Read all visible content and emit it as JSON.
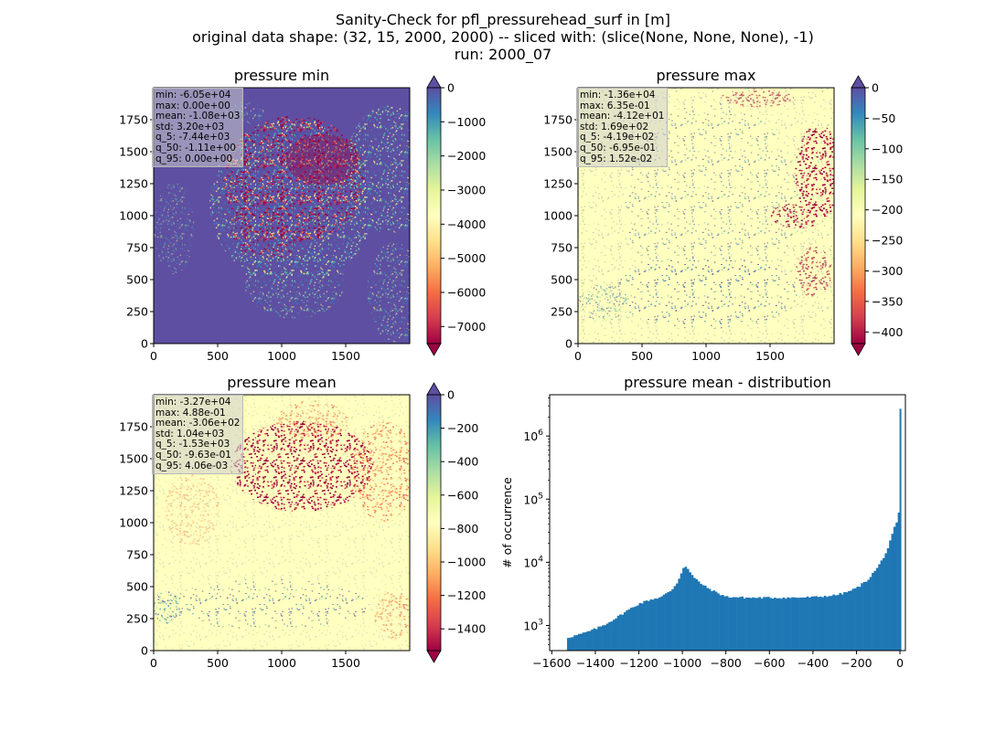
{
  "figure": {
    "suptitle_lines": [
      "Sanity-Check for pfl_pressurehead_surf in [m]",
      "original data shape: (32, 15, 2000, 2000) -- sliced with: (slice(None, None, None), -1)",
      "run: 2000_07"
    ]
  },
  "chart_data": [
    {
      "type": "heatmap",
      "title": "pressure min",
      "colormap": "Spectral",
      "xticks": [
        0,
        500,
        1000,
        1500
      ],
      "yticks": [
        0,
        250,
        500,
        750,
        1000,
        1250,
        1500,
        1750
      ],
      "xlim": [
        0,
        2000
      ],
      "ylim": [
        0,
        2000
      ],
      "colorbar": {
        "range": [
          -7500,
          0
        ],
        "ticks": [
          0,
          -1000,
          -2000,
          -3000,
          -4000,
          -5000,
          -6000,
          -7000
        ],
        "extend": "both"
      },
      "stats": [
        "min: -6.05e+04",
        "max: 0.00e+00",
        "mean: -1.08e+03",
        "std: 3.20e+03",
        "q_5: -7.44e+03",
        "q_50: -1.11e+00",
        "q_95: 0.00e+00"
      ]
    },
    {
      "type": "heatmap",
      "title": "pressure max",
      "colormap": "Spectral",
      "xticks": [
        0,
        500,
        1000,
        1500
      ],
      "yticks": [
        0,
        250,
        500,
        750,
        1000,
        1250,
        1500,
        1750
      ],
      "xlim": [
        0,
        2000
      ],
      "ylim": [
        0,
        2000
      ],
      "colorbar": {
        "range": [
          -419,
          0
        ],
        "ticks": [
          0,
          -50,
          -100,
          -150,
          -200,
          -250,
          -300,
          -350,
          -400
        ],
        "extend": "both"
      },
      "stats": [
        "min: -1.36e+04",
        "max: 6.35e-01",
        "mean: -4.12e+01",
        "std: 1.69e+02",
        "q_5: -4.19e+02",
        "q_50: -6.95e-01",
        "q_95: 1.52e-02"
      ]
    },
    {
      "type": "heatmap",
      "title": "pressure mean",
      "colormap": "Spectral",
      "xticks": [
        0,
        500,
        1000,
        1500
      ],
      "yticks": [
        0,
        250,
        500,
        750,
        1000,
        1250,
        1500,
        1750
      ],
      "xlim": [
        0,
        2000
      ],
      "ylim": [
        0,
        2000
      ],
      "colorbar": {
        "range": [
          -1530,
          0
        ],
        "ticks": [
          0,
          -200,
          -400,
          -600,
          -800,
          -1000,
          -1200,
          -1400
        ],
        "extend": "both"
      },
      "stats": [
        "min: -3.27e+04",
        "max: 4.88e-01",
        "mean: -3.06e+02",
        "std: 1.04e+03",
        "q_5: -1.53e+03",
        "q_50: -9.63e-01",
        "q_95: 4.06e-03"
      ]
    },
    {
      "type": "bar",
      "title": "pressure mean - distribution",
      "ylabel": "# of occurrence",
      "yscale": "log",
      "color": "#1f77b4",
      "xlim": [
        -1610,
        25
      ],
      "ylim": [
        400,
        4500000
      ],
      "xticks": [
        -1600,
        -1400,
        -1200,
        -1000,
        -800,
        -600,
        -400,
        -200,
        0
      ],
      "xtick_labels": [
        "−1600",
        "−1400",
        "−1200",
        "−1000",
        "−800",
        "−600",
        "−400",
        "−200",
        "0"
      ],
      "yticks": [
        1000,
        10000,
        100000,
        1000000
      ],
      "ytick_exponents": [
        "3",
        "4",
        "5",
        "6"
      ],
      "ytick_base": "10",
      "bin_width": 10,
      "profile_x": [
        -1530,
        -1500,
        -1450,
        -1400,
        -1350,
        -1300,
        -1250,
        -1200,
        -1150,
        -1100,
        -1050,
        -1020,
        -1000,
        -990,
        -970,
        -950,
        -920,
        -900,
        -850,
        -800,
        -700,
        -600,
        -500,
        -400,
        -300,
        -250,
        -200,
        -150,
        -100,
        -60,
        -40,
        -20,
        -10,
        -5,
        0
      ],
      "profile_y": [
        640,
        680,
        760,
        880,
        1060,
        1350,
        1750,
        2200,
        2550,
        2800,
        3600,
        5000,
        7500,
        9200,
        7400,
        5800,
        4800,
        4200,
        3400,
        2850,
        2750,
        2750,
        2750,
        2800,
        3000,
        3300,
        3900,
        5200,
        8500,
        15000,
        24000,
        40000,
        43000,
        60000,
        2700000
      ]
    }
  ]
}
